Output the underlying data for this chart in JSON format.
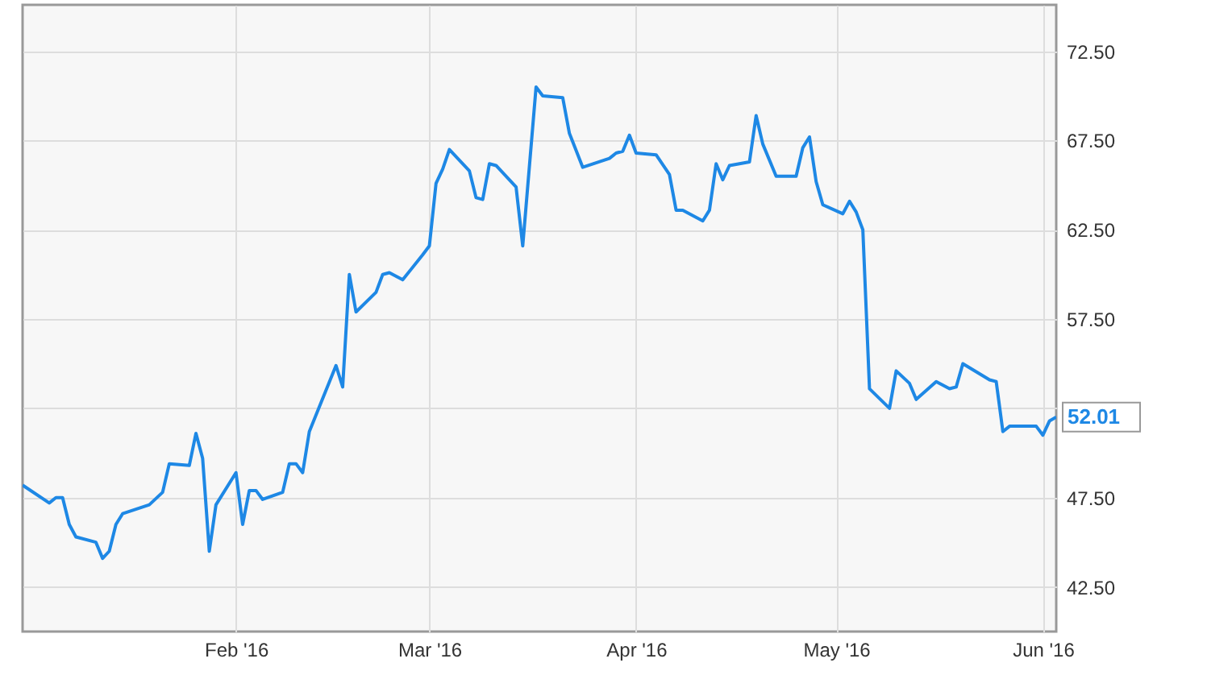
{
  "chart_data": {
    "type": "line",
    "x": [
      "2015-12-31",
      "2016-01-04",
      "2016-01-05",
      "2016-01-06",
      "2016-01-07",
      "2016-01-08",
      "2016-01-11",
      "2016-01-12",
      "2016-01-13",
      "2016-01-14",
      "2016-01-15",
      "2016-01-19",
      "2016-01-21",
      "2016-01-22",
      "2016-01-25",
      "2016-01-26",
      "2016-01-27",
      "2016-01-28",
      "2016-01-29",
      "2016-02-01",
      "2016-02-02",
      "2016-02-03",
      "2016-02-04",
      "2016-02-05",
      "2016-02-08",
      "2016-02-09",
      "2016-02-10",
      "2016-02-11",
      "2016-02-12",
      "2016-02-16",
      "2016-02-17",
      "2016-02-18",
      "2016-02-19",
      "2016-02-22",
      "2016-02-23",
      "2016-02-24",
      "2016-02-26",
      "2016-02-29",
      "2016-03-01",
      "2016-03-02",
      "2016-03-03",
      "2016-03-04",
      "2016-03-07",
      "2016-03-08",
      "2016-03-09",
      "2016-03-10",
      "2016-03-11",
      "2016-03-14",
      "2016-03-15",
      "2016-03-17",
      "2016-03-18",
      "2016-03-21",
      "2016-03-22",
      "2016-03-24",
      "2016-03-28",
      "2016-03-29",
      "2016-03-30",
      "2016-03-31",
      "2016-04-01",
      "2016-04-04",
      "2016-04-06",
      "2016-04-07",
      "2016-04-08",
      "2016-04-11",
      "2016-04-12",
      "2016-04-13",
      "2016-04-14",
      "2016-04-15",
      "2016-04-18",
      "2016-04-19",
      "2016-04-20",
      "2016-04-22",
      "2016-04-25",
      "2016-04-26",
      "2016-04-27",
      "2016-04-28",
      "2016-04-29",
      "2016-05-02",
      "2016-05-03",
      "2016-05-04",
      "2016-05-05",
      "2016-05-06",
      "2016-05-09",
      "2016-05-10",
      "2016-05-12",
      "2016-05-13",
      "2016-05-16",
      "2016-05-18",
      "2016-05-19",
      "2016-05-20",
      "2016-05-24",
      "2016-05-25",
      "2016-05-26",
      "2016-05-27",
      "2016-05-31",
      "2016-06-01",
      "2016-06-02",
      "2016-06-03"
    ],
    "series": [
      {
        "color": "#1e88e5",
        "values": [
          48.2,
          47.2,
          47.5,
          47.5,
          46.0,
          45.3,
          45.0,
          44.1,
          44.5,
          46.0,
          46.6,
          47.1,
          47.8,
          49.4,
          49.3,
          51.1,
          49.7,
          44.5,
          47.1,
          48.9,
          46.0,
          47.9,
          47.9,
          47.4,
          47.8,
          49.4,
          49.4,
          48.9,
          51.2,
          54.9,
          53.7,
          60.0,
          57.9,
          59.0,
          60.0,
          60.1,
          59.7,
          61.1,
          61.6,
          65.1,
          65.9,
          67.0,
          65.8,
          64.3,
          64.2,
          66.2,
          66.1,
          64.9,
          61.6,
          70.5,
          70.0,
          69.9,
          67.9,
          66.0,
          66.5,
          66.8,
          66.9,
          67.8,
          66.8,
          66.7,
          65.6,
          63.6,
          63.6,
          63.0,
          63.6,
          66.2,
          65.3,
          66.1,
          66.3,
          68.9,
          67.3,
          65.5,
          65.5,
          67.1,
          67.7,
          65.2,
          63.9,
          63.4,
          64.1,
          63.5,
          62.5,
          53.6,
          52.5,
          54.6,
          53.9,
          53.0,
          54.0,
          53.6,
          53.7,
          55.0,
          54.1,
          54.0,
          51.2,
          51.5,
          51.5,
          51.0,
          51.8,
          52.01
        ]
      }
    ],
    "xlim": [
      "2015-12-31",
      "2016-06-03"
    ],
    "xticks": [
      {
        "value": "2016-02-01",
        "label": "Feb '16"
      },
      {
        "value": "2016-03-01",
        "label": "Mar '16"
      },
      {
        "value": "2016-04-01",
        "label": "Apr '16"
      },
      {
        "value": "2016-05-01",
        "label": "May '16"
      },
      {
        "value": "2016-06-01",
        "label": "Jun '16"
      }
    ],
    "ylim": [
      40,
      75.1
    ],
    "yticks": [
      {
        "value": 42.5,
        "label": "42.50"
      },
      {
        "value": 47.5,
        "label": "47.50"
      },
      {
        "value": 52.5,
        "label": null
      },
      {
        "value": 57.5,
        "label": "57.50"
      },
      {
        "value": 62.5,
        "label": "62.50"
      },
      {
        "value": 67.5,
        "label": "67.50"
      },
      {
        "value": 72.5,
        "label": "72.50"
      }
    ],
    "annotations": [
      {
        "text": "52.01",
        "x": "2016-06-03",
        "y": 52.01
      }
    ],
    "grid": true,
    "marker": "none",
    "line_style": "solid"
  }
}
